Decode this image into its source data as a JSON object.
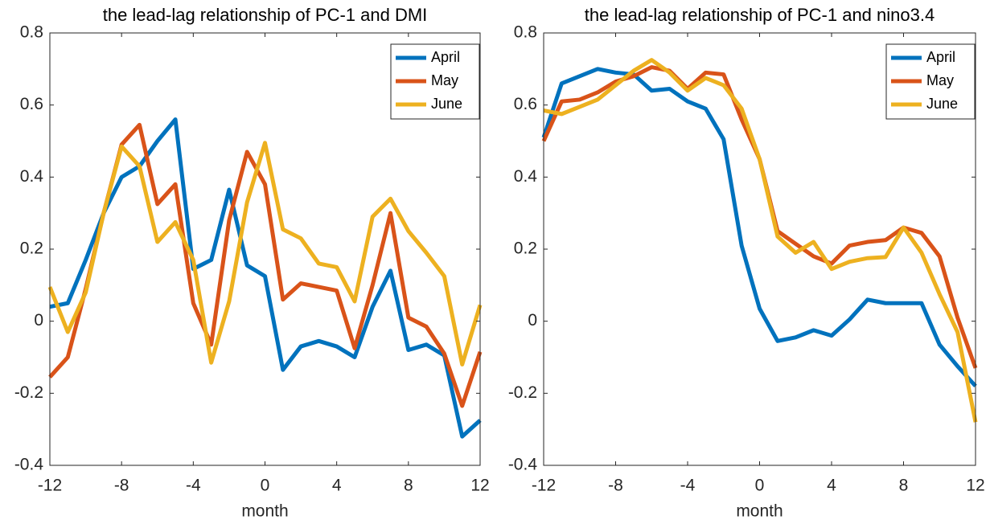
{
  "chart_data": [
    {
      "type": "line",
      "title": "the lead-lag relationship of PC-1 and DMI",
      "x_label": "month",
      "x": [
        -12,
        -11,
        -10,
        -9,
        -8,
        -7,
        -6,
        -5,
        -4,
        -3,
        -2,
        -1,
        0,
        1,
        2,
        3,
        4,
        5,
        6,
        7,
        8,
        9,
        10,
        11,
        12
      ],
      "xlim": [
        -12,
        12
      ],
      "xticks": [
        -12,
        -8,
        -4,
        0,
        4,
        8,
        12
      ],
      "ylim": [
        -0.4,
        0.8
      ],
      "yticks": [
        -0.4,
        -0.2,
        0,
        0.2,
        0.4,
        0.6,
        0.8
      ],
      "legend": "upper-right",
      "series": [
        {
          "name": "April",
          "color": "#0072BD",
          "values": [
            0.04,
            0.05,
            0.17,
            0.3,
            0.4,
            0.43,
            0.5,
            0.56,
            0.145,
            0.17,
            0.365,
            0.155,
            0.125,
            -0.135,
            -0.07,
            -0.055,
            -0.07,
            -0.1,
            0.04,
            0.14,
            -0.08,
            -0.065,
            -0.095,
            -0.32,
            -0.275
          ]
        },
        {
          "name": "May",
          "color": "#D95319",
          "values": [
            -0.155,
            -0.1,
            0.09,
            0.3,
            0.49,
            0.545,
            0.325,
            0.38,
            0.05,
            -0.065,
            0.28,
            0.47,
            0.38,
            0.06,
            0.105,
            0.095,
            0.085,
            -0.075,
            0.1,
            0.3,
            0.01,
            -0.015,
            -0.09,
            -0.235,
            -0.085
          ]
        },
        {
          "name": "June",
          "color": "#EDB120",
          "values": [
            0.095,
            -0.03,
            0.08,
            0.3,
            0.485,
            0.43,
            0.22,
            0.275,
            0.17,
            -0.115,
            0.055,
            0.33,
            0.495,
            0.255,
            0.23,
            0.16,
            0.15,
            0.055,
            0.29,
            0.34,
            0.25,
            0.19,
            0.125,
            -0.12,
            0.045
          ]
        }
      ]
    },
    {
      "type": "line",
      "title": "the lead-lag relationship of PC-1 and nino3.4",
      "x_label": "month",
      "x": [
        -12,
        -11,
        -10,
        -9,
        -8,
        -7,
        -6,
        -5,
        -4,
        -3,
        -2,
        -1,
        0,
        1,
        2,
        3,
        4,
        5,
        6,
        7,
        8,
        9,
        10,
        11,
        12
      ],
      "xlim": [
        -12,
        12
      ],
      "xticks": [
        -12,
        -8,
        -4,
        0,
        4,
        8,
        12
      ],
      "ylim": [
        -0.4,
        0.8
      ],
      "yticks": [
        -0.4,
        -0.2,
        0,
        0.2,
        0.4,
        0.6,
        0.8
      ],
      "legend": "upper-right",
      "series": [
        {
          "name": "April",
          "color": "#0072BD",
          "values": [
            0.51,
            0.66,
            0.68,
            0.7,
            0.69,
            0.685,
            0.64,
            0.645,
            0.61,
            0.59,
            0.505,
            0.21,
            0.035,
            -0.055,
            -0.045,
            -0.025,
            -0.04,
            0.005,
            0.06,
            0.05,
            0.05,
            0.05,
            -0.065,
            -0.125,
            -0.18
          ]
        },
        {
          "name": "May",
          "color": "#D95319",
          "values": [
            0.5,
            0.61,
            0.615,
            0.635,
            0.665,
            0.68,
            0.705,
            0.695,
            0.645,
            0.69,
            0.685,
            0.56,
            0.45,
            0.25,
            0.215,
            0.18,
            0.16,
            0.21,
            0.22,
            0.225,
            0.26,
            0.245,
            0.18,
            0.01,
            -0.13
          ]
        },
        {
          "name": "June",
          "color": "#EDB120",
          "values": [
            0.585,
            0.575,
            0.595,
            0.615,
            0.655,
            0.695,
            0.725,
            0.69,
            0.64,
            0.675,
            0.655,
            0.59,
            0.45,
            0.235,
            0.19,
            0.22,
            0.145,
            0.165,
            0.175,
            0.178,
            0.26,
            0.19,
            0.075,
            -0.03,
            -0.28
          ]
        }
      ]
    }
  ]
}
